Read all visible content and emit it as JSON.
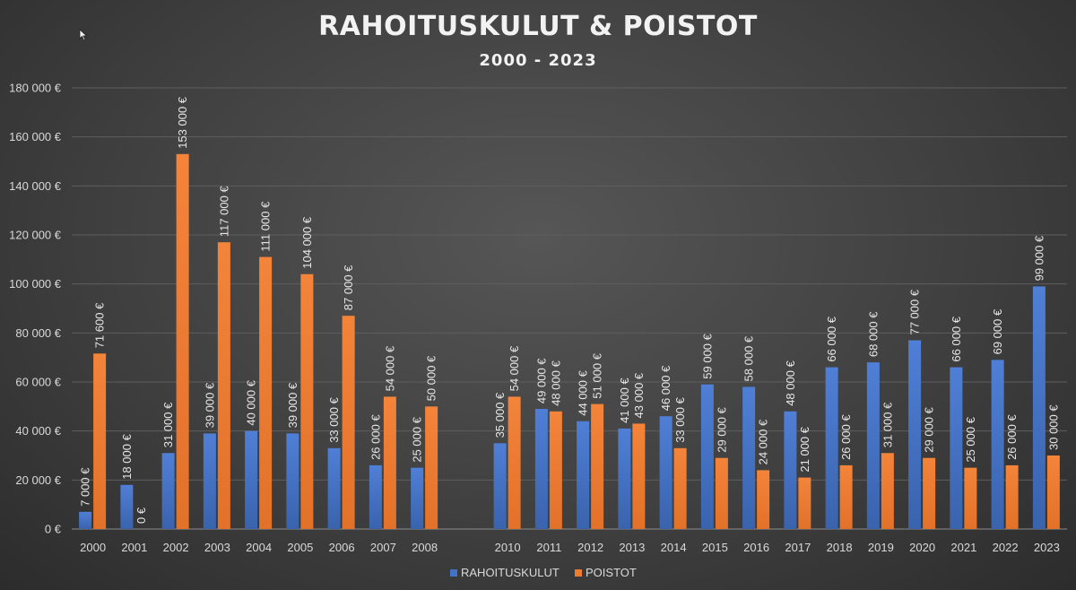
{
  "chart_data": {
    "type": "bar",
    "title": "RAHOITUSKULUT & POISTOT",
    "subtitle": "2000 - 2023",
    "categories": [
      "2000",
      "2001",
      "2002",
      "2003",
      "2004",
      "2005",
      "2006",
      "2007",
      "2008",
      "",
      "2010",
      "2011",
      "2012",
      "2013",
      "2014",
      "2015",
      "2016",
      "2017",
      "2018",
      "2019",
      "2020",
      "2021",
      "2022",
      "2023"
    ],
    "series": [
      {
        "name": "RAHOITUSKULUT",
        "color": "#4472c4",
        "values": [
          7000,
          18000,
          31000,
          39000,
          40000,
          39000,
          33000,
          26000,
          25000,
          null,
          35000,
          49000,
          44000,
          41000,
          46000,
          59000,
          58000,
          48000,
          66000,
          68000,
          77000,
          66000,
          69000,
          99000
        ],
        "labels": [
          "7 000 €",
          "18 000 €",
          "31 000 €",
          "39 000 €",
          "40 000 €",
          "39 000 €",
          "33 000 €",
          "26 000 €",
          "25 000 €",
          "",
          "35 000 €",
          "49 000 €",
          "44 000 €",
          "41 000 €",
          "46 000 €",
          "59 000 €",
          "58 000 €",
          "48 000 €",
          "66 000 €",
          "68 000 €",
          "77 000 €",
          "66 000 €",
          "69 000 €",
          "99 000 €"
        ]
      },
      {
        "name": "POISTOT",
        "color": "#ed7d31",
        "values": [
          71600,
          0,
          153000,
          117000,
          111000,
          104000,
          87000,
          54000,
          50000,
          null,
          54000,
          48000,
          51000,
          43000,
          33000,
          29000,
          24000,
          21000,
          26000,
          31000,
          29000,
          25000,
          26000,
          30000
        ],
        "labels": [
          "71 600 €",
          "0 €",
          "153 000 €",
          "117 000 €",
          "111 000 €",
          "104 000 €",
          "87 000 €",
          "54 000 €",
          "50 000 €",
          "",
          "54 000 €",
          "48 000 €",
          "51 000 €",
          "43 000 €",
          "33 000 €",
          "29 000 €",
          "24 000 €",
          "21 000 €",
          "26 000 €",
          "31 000 €",
          "29 000 €",
          "25 000 €",
          "26 000 €",
          "30 000 €"
        ]
      }
    ],
    "ylim": [
      0,
      180000
    ],
    "y_ticks": [
      0,
      20000,
      40000,
      60000,
      80000,
      100000,
      120000,
      140000,
      160000,
      180000
    ],
    "y_tick_labels": [
      "0 €",
      "20 000 €",
      "40 000 €",
      "60 000 €",
      "80 000 €",
      "100 000 €",
      "120 000 €",
      "140 000 €",
      "160 000 €",
      "180 000 €"
    ],
    "grid": true,
    "legend_position": "bottom-center",
    "xlabel": "",
    "ylabel": ""
  }
}
